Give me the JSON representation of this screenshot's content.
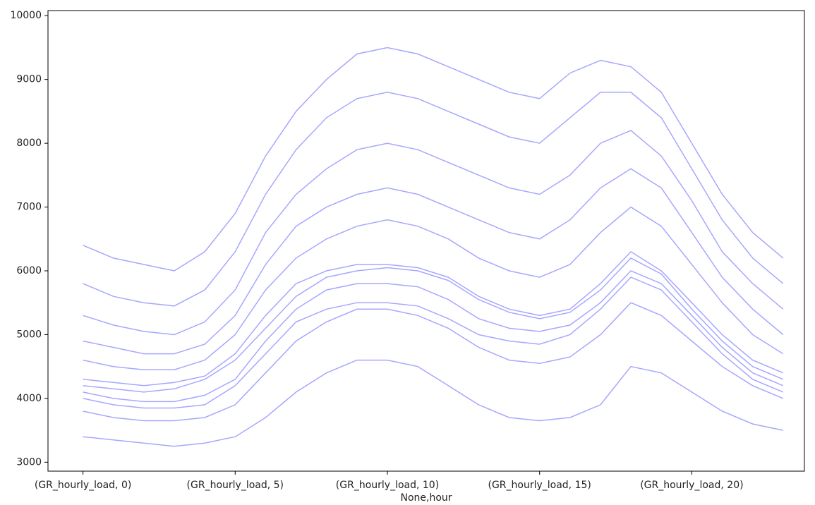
{
  "chart_data": {
    "type": "line",
    "xlabel": "None,hour",
    "x": [
      0,
      1,
      2,
      3,
      4,
      5,
      6,
      7,
      8,
      9,
      10,
      11,
      12,
      13,
      14,
      15,
      16,
      17,
      18,
      19,
      20,
      21,
      22,
      23
    ],
    "xlim": [
      -1.15,
      23.7
    ],
    "xticks": [
      {
        "value": 0,
        "label": "(GR_hourly_load, 0)"
      },
      {
        "value": 5,
        "label": "(GR_hourly_load, 5)"
      },
      {
        "value": 10,
        "label": "(GR_hourly_load, 10)"
      },
      {
        "value": 15,
        "label": "(GR_hourly_load, 15)"
      },
      {
        "value": 20,
        "label": "(GR_hourly_load, 20)"
      }
    ],
    "ylim": [
      2860,
      10080
    ],
    "yticks": [
      3000,
      4000,
      5000,
      6000,
      7000,
      8000,
      9000,
      10000
    ],
    "grid": false,
    "line_opacity": 0.35,
    "series": [
      {
        "color": "#0000ff",
        "values": [
          3400,
          3350,
          3300,
          3250,
          3300,
          3400,
          3700,
          4100,
          4400,
          4600,
          4600,
          4500,
          4200,
          3900,
          3700,
          3650,
          3700,
          3900,
          4500,
          4400,
          4100,
          3800,
          3600,
          3500
        ]
      },
      {
        "color": "#0000ff",
        "values": [
          3800,
          3700,
          3650,
          3650,
          3700,
          3900,
          4400,
          4900,
          5200,
          5400,
          5400,
          5300,
          5100,
          4800,
          4600,
          4550,
          4650,
          5000,
          5500,
          5300,
          4900,
          4500,
          4200,
          4000
        ]
      },
      {
        "color": "#0000ff",
        "values": [
          4000,
          3900,
          3850,
          3850,
          3900,
          4200,
          4700,
          5200,
          5400,
          5500,
          5500,
          5450,
          5250,
          5000,
          4900,
          4850,
          5000,
          5400,
          5900,
          5700,
          5200,
          4700,
          4300,
          4100
        ]
      },
      {
        "color": "#0000ff",
        "values": [
          4100,
          4000,
          3950,
          3950,
          4050,
          4300,
          4900,
          5400,
          5700,
          5800,
          5800,
          5750,
          5550,
          5250,
          5100,
          5050,
          5150,
          5500,
          6000,
          5800,
          5300,
          4800,
          4400,
          4200
        ]
      },
      {
        "color": "#0000ff",
        "values": [
          4200,
          4150,
          4100,
          4150,
          4300,
          4600,
          5100,
          5600,
          5900,
          6000,
          6050,
          6000,
          5850,
          5550,
          5350,
          5250,
          5350,
          5700,
          6200,
          5950,
          5400,
          4900,
          4500,
          4300
        ]
      },
      {
        "color": "#0000ff",
        "values": [
          4300,
          4250,
          4200,
          4250,
          4350,
          4700,
          5300,
          5800,
          6000,
          6100,
          6100,
          6050,
          5900,
          5600,
          5400,
          5300,
          5400,
          5800,
          6300,
          6000,
          5500,
          5000,
          4600,
          4400
        ]
      },
      {
        "color": "#0000ff",
        "values": [
          4600,
          4500,
          4450,
          4450,
          4600,
          5000,
          5700,
          6200,
          6500,
          6700,
          6800,
          6700,
          6500,
          6200,
          6000,
          5900,
          6100,
          6600,
          7000,
          6700,
          6100,
          5500,
          5000,
          4700
        ]
      },
      {
        "color": "#0000ff",
        "values": [
          4900,
          4800,
          4700,
          4700,
          4850,
          5300,
          6100,
          6700,
          7000,
          7200,
          7300,
          7200,
          7000,
          6800,
          6600,
          6500,
          6800,
          7300,
          7600,
          7300,
          6600,
          5900,
          5400,
          5000
        ]
      },
      {
        "color": "#0000ff",
        "values": [
          5300,
          5150,
          5050,
          5000,
          5200,
          5700,
          6600,
          7200,
          7600,
          7900,
          8000,
          7900,
          7700,
          7500,
          7300,
          7200,
          7500,
          8000,
          8200,
          7800,
          7100,
          6300,
          5800,
          5400
        ]
      },
      {
        "color": "#0000ff",
        "values": [
          5800,
          5600,
          5500,
          5450,
          5700,
          6300,
          7200,
          7900,
          8400,
          8700,
          8800,
          8700,
          8500,
          8300,
          8100,
          8000,
          8400,
          8800,
          8800,
          8400,
          7600,
          6800,
          6200,
          5800
        ]
      },
      {
        "color": "#0000ff",
        "values": [
          6400,
          6200,
          6100,
          6000,
          6300,
          6900,
          7800,
          8500,
          9000,
          9400,
          9500,
          9400,
          9200,
          9000,
          8800,
          8700,
          9100,
          9300,
          9200,
          8800,
          8000,
          7200,
          6600,
          6200
        ]
      }
    ]
  }
}
